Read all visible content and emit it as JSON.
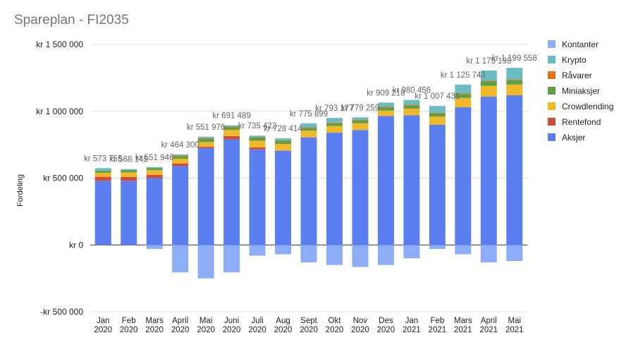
{
  "chart_data": {
    "type": "bar",
    "stacked": true,
    "title": "Spareplan - FI2035",
    "xlabel": "",
    "ylabel": "Fordeling",
    "ylim": [
      -500000,
      1500000
    ],
    "y_ticks": [
      -500000,
      0,
      500000,
      1000000,
      1500000
    ],
    "y_tick_labels": [
      "-kr 500 000",
      "kr   0",
      "kr 500 000",
      "kr 1 000 000",
      "kr 1 500 000"
    ],
    "grid": true,
    "legend_position": "right",
    "categories": [
      [
        "Jan",
        "2020"
      ],
      [
        "Feb",
        "2020"
      ],
      [
        "Mars",
        "2020"
      ],
      [
        "April",
        "2020"
      ],
      [
        "Mai",
        "2020"
      ],
      [
        "Juni",
        "2020"
      ],
      [
        "Juli",
        "2020"
      ],
      [
        "Aug",
        "2020"
      ],
      [
        "Sept",
        "2020"
      ],
      [
        "Okt",
        "2020"
      ],
      [
        "Nov",
        "2020"
      ],
      [
        "Des",
        "2020"
      ],
      [
        "Jan",
        "2021"
      ],
      [
        "Feb",
        "2021"
      ],
      [
        "Mars",
        "2021"
      ],
      [
        "April",
        "2021"
      ],
      [
        "Mai",
        "2021"
      ]
    ],
    "series": [
      {
        "name": "Aksjer",
        "color": "#5b7ff0",
        "values": [
          480000,
          480000,
          500000,
          590000,
          725000,
          790000,
          715000,
          705000,
          805000,
          840000,
          860000,
          965000,
          970000,
          900000,
          1030000,
          1110000,
          1120000
        ]
      },
      {
        "name": "Rentefond",
        "color": "#d24c3a",
        "values": [
          30000,
          28000,
          25000,
          20000,
          10000,
          25000,
          15000,
          0,
          0,
          0,
          0,
          0,
          0,
          0,
          0,
          0,
          0
        ]
      },
      {
        "name": "Crowdlending",
        "color": "#f0b92a",
        "values": [
          30000,
          35000,
          35000,
          35000,
          35000,
          45000,
          50000,
          50000,
          50000,
          50000,
          50000,
          40000,
          50000,
          60000,
          70000,
          80000,
          80000
        ]
      },
      {
        "name": "Miniaksjer",
        "color": "#5e9f47",
        "values": [
          15000,
          15000,
          15000,
          20000,
          25000,
          20000,
          25000,
          25000,
          20000,
          20000,
          20000,
          25000,
          25000,
          25000,
          30000,
          35000,
          35000
        ]
      },
      {
        "name": "Råvarer",
        "color": "#e4711a",
        "values": [
          0,
          0,
          0,
          5000,
          5000,
          5000,
          3000,
          3000,
          5000,
          5000,
          5000,
          5000,
          5000,
          5000,
          5000,
          5000,
          5000
        ]
      },
      {
        "name": "Krypto",
        "color": "#6bbcc5",
        "values": [
          20000,
          10000,
          8000,
          8000,
          10000,
          10000,
          10000,
          15000,
          30000,
          35000,
          20000,
          30000,
          35000,
          50000,
          65000,
          75000,
          85000
        ]
      },
      {
        "name": "Kontanter",
        "color": "#8daef6",
        "values": [
          0,
          0,
          -30000,
          -205000,
          -250000,
          -205000,
          -80000,
          -70000,
          -130000,
          -150000,
          -165000,
          -150000,
          -100000,
          -30000,
          -70000,
          -130000,
          -120000
        ]
      }
    ],
    "data_labels": [
      "kr 573 755",
      "kr 568 145",
      "kr 551 946",
      "kr 464 300",
      "kr 551 976",
      "kr 691 489",
      "kr 735 422",
      "kr 728 414",
      "kr 775 899",
      "kr 793 177",
      "kr 779 259",
      "kr 909 218",
      "kr 980 456",
      "kr 1 007 431",
      "kr 1 125 743",
      "kr 1 175 198",
      "kr 1 199 558"
    ],
    "legend_order": [
      "Kontanter",
      "Krypto",
      "Råvarer",
      "Miniaksjer",
      "Crowdlending",
      "Rentefond",
      "Aksjer"
    ]
  }
}
